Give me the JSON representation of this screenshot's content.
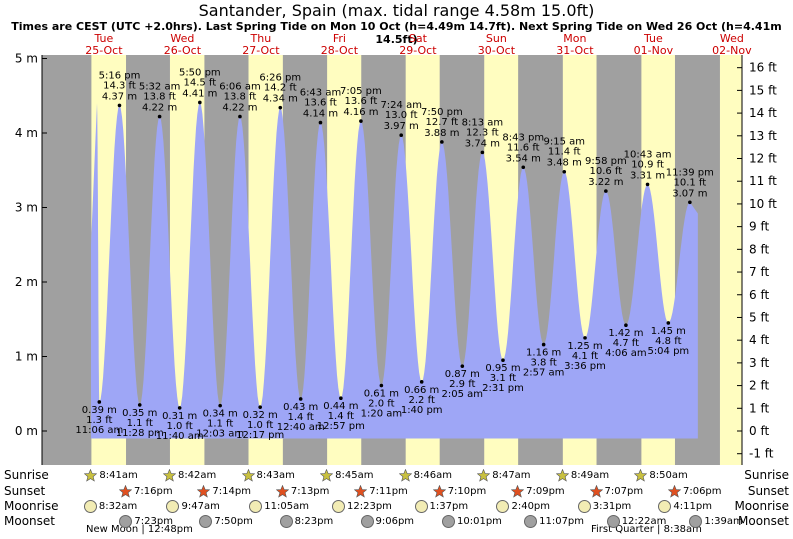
{
  "title": "Santander, Spain (max. tidal range 4.58m 15.0ft)",
  "subtitle": "Times are CEST (UTC +2.0hrs). Last Spring Tide on Mon 10 Oct (h=4.49m 14.7ft). Next Spring Tide on Wed 26 Oct (h=4.41m 14.5ft)",
  "colors": {
    "water": "#9ea6f6",
    "day": "#fffdc0",
    "night": "#a0a0a0",
    "day_label": "#cc0000",
    "sun_icon": "#c8c040",
    "sunset_icon": "#e05020"
  },
  "row_labels": {
    "sunrise": "Sunrise",
    "sunset": "Sunset",
    "moonrise": "Moonrise",
    "moonset": "Moonset"
  },
  "chart_data": {
    "type": "area",
    "title": "Santander, Spain (max. tidal range 4.58m 15.0ft)",
    "xlabel": "",
    "ylabel": "",
    "ylim_m": [
      -0.45,
      5.15
    ],
    "y_ticks_m": [
      "0 m",
      "1 m",
      "2 m",
      "3 m",
      "4 m",
      "5 m"
    ],
    "y_ticks_ft": [
      "-1 ft",
      "0 ft",
      "1 ft",
      "2 ft",
      "3 ft",
      "4 ft",
      "5 ft",
      "6 ft",
      "7 ft",
      "8 ft",
      "9 ft",
      "10 ft",
      "11 ft",
      "12 ft",
      "13 ft",
      "14 ft",
      "15 ft",
      "16 ft"
    ],
    "grid": false,
    "days": [
      {
        "weekday": "Tue",
        "date": "25-Oct"
      },
      {
        "weekday": "Wed",
        "date": "26-Oct"
      },
      {
        "weekday": "Thu",
        "date": "27-Oct"
      },
      {
        "weekday": "Fri",
        "date": "28-Oct"
      },
      {
        "weekday": "Sat",
        "date": "29-Oct"
      },
      {
        "weekday": "Sun",
        "date": "30-Oct"
      },
      {
        "weekday": "Mon",
        "date": "31-Oct"
      },
      {
        "weekday": "Tue",
        "date": "01-Nov"
      },
      {
        "weekday": "Wed",
        "date": "02-Nov"
      }
    ],
    "series": [
      {
        "day": 0,
        "time": "-",
        "height_m": 4.4,
        "labelled": false
      },
      {
        "day": 0,
        "time": "11:06 am",
        "height_m": 0.39,
        "ft": "1.3 ft",
        "m": "0.39 m",
        "type": "low"
      },
      {
        "day": 0,
        "time": "5:16 pm",
        "height_m": 4.37,
        "ft": "14.3 ft",
        "m": "4.37 m",
        "type": "high"
      },
      {
        "day": 0,
        "time": "11:28 pm",
        "height_m": 0.35,
        "ft": "1.1 ft",
        "m": "0.35 m",
        "type": "low"
      },
      {
        "day": 1,
        "time": "5:32 am",
        "height_m": 4.22,
        "ft": "13.8 ft",
        "m": "4.22 m",
        "type": "high"
      },
      {
        "day": 1,
        "time": "11:40 am",
        "height_m": 0.31,
        "ft": "1.0 ft",
        "m": "0.31 m",
        "type": "low"
      },
      {
        "day": 1,
        "time": "5:50 pm",
        "height_m": 4.41,
        "ft": "14.5 ft",
        "m": "4.41 m",
        "type": "high"
      },
      {
        "day": 2,
        "time": "12:03 am",
        "height_m": 0.34,
        "ft": "1.1 ft",
        "m": "0.34 m",
        "type": "low"
      },
      {
        "day": 2,
        "time": "6:06 am",
        "height_m": 4.22,
        "ft": "13.8 ft",
        "m": "4.22 m",
        "type": "high"
      },
      {
        "day": 2,
        "time": "12:17 pm",
        "height_m": 0.32,
        "ft": "1.0 ft",
        "m": "0.32 m",
        "type": "low"
      },
      {
        "day": 2,
        "time": "6:26 pm",
        "height_m": 4.34,
        "ft": "14.2 ft",
        "m": "4.34 m",
        "type": "high"
      },
      {
        "day": 3,
        "time": "12:40 am",
        "height_m": 0.43,
        "ft": "1.4 ft",
        "m": "0.43 m",
        "type": "low"
      },
      {
        "day": 3,
        "time": "6:43 am",
        "height_m": 4.14,
        "ft": "13.6 ft",
        "m": "4.14 m",
        "type": "high"
      },
      {
        "day": 3,
        "time": "12:57 pm",
        "height_m": 0.44,
        "ft": "1.4 ft",
        "m": "0.44 m",
        "type": "low"
      },
      {
        "day": 3,
        "time": "7:05 pm",
        "height_m": 4.16,
        "ft": "13.6 ft",
        "m": "4.16 m",
        "type": "high"
      },
      {
        "day": 4,
        "time": "1:20 am",
        "height_m": 0.61,
        "ft": "2.0 ft",
        "m": "0.61 m",
        "type": "low"
      },
      {
        "day": 4,
        "time": "7:24 am",
        "height_m": 3.97,
        "ft": "13.0 ft",
        "m": "3.97 m",
        "type": "high"
      },
      {
        "day": 4,
        "time": "1:40 pm",
        "height_m": 0.66,
        "ft": "2.2 ft",
        "m": "0.66 m",
        "type": "low"
      },
      {
        "day": 4,
        "time": "7:50 pm",
        "height_m": 3.88,
        "ft": "12.7 ft",
        "m": "3.88 m",
        "type": "high"
      },
      {
        "day": 5,
        "time": "2:05 am",
        "height_m": 0.87,
        "ft": "2.9 ft",
        "m": "0.87 m",
        "type": "low"
      },
      {
        "day": 5,
        "time": "8:13 am",
        "height_m": 3.74,
        "ft": "12.3 ft",
        "m": "3.74 m",
        "type": "high"
      },
      {
        "day": 5,
        "time": "2:31 pm",
        "height_m": 0.95,
        "ft": "3.1 ft",
        "m": "0.95 m",
        "type": "low"
      },
      {
        "day": 5,
        "time": "8:43 pm",
        "height_m": 3.54,
        "ft": "11.6 ft",
        "m": "3.54 m",
        "type": "high"
      },
      {
        "day": 6,
        "time": "2:57 am",
        "height_m": 1.16,
        "ft": "3.8 ft",
        "m": "1.16 m",
        "type": "low"
      },
      {
        "day": 6,
        "time": "9:15 am",
        "height_m": 3.48,
        "ft": "11.4 ft",
        "m": "3.48 m",
        "type": "high"
      },
      {
        "day": 6,
        "time": "3:36 pm",
        "height_m": 1.25,
        "ft": "4.1 ft",
        "m": "1.25 m",
        "type": "low"
      },
      {
        "day": 6,
        "time": "9:58 pm",
        "height_m": 3.22,
        "ft": "10.6 ft",
        "m": "3.22 m",
        "type": "high"
      },
      {
        "day": 7,
        "time": "4:06 am",
        "height_m": 1.42,
        "ft": "4.7 ft",
        "m": "1.42 m",
        "type": "low"
      },
      {
        "day": 7,
        "time": "10:43 am",
        "height_m": 3.31,
        "ft": "10.9 ft",
        "m": "3.31 m",
        "type": "high"
      },
      {
        "day": 7,
        "time": "5:04 pm",
        "height_m": 1.45,
        "ft": "4.8 ft",
        "m": "1.45 m",
        "type": "low"
      },
      {
        "day": 7,
        "time": "11:39 pm",
        "height_m": 3.07,
        "ft": "10.1 ft",
        "m": "3.07 m",
        "type": "high"
      }
    ]
  },
  "astro": [
    {
      "sunrise": "8:41am",
      "sunset": "7:16pm",
      "moonrise": "8:32am",
      "moonset": "7:23pm"
    },
    {
      "sunrise": "8:42am",
      "sunset": "7:14pm",
      "moonrise": "9:47am",
      "moonset": "7:50pm"
    },
    {
      "sunrise": "8:43am",
      "sunset": "7:13pm",
      "moonrise": "11:05am",
      "moonset": "8:23pm"
    },
    {
      "sunrise": "8:45am",
      "sunset": "7:11pm",
      "moonrise": "12:23pm",
      "moonset": "9:06pm"
    },
    {
      "sunrise": "8:46am",
      "sunset": "7:10pm",
      "moonrise": "1:37pm",
      "moonset": "10:01pm"
    },
    {
      "sunrise": "8:47am",
      "sunset": "7:09pm",
      "moonrise": "2:40pm",
      "moonset": "11:07pm"
    },
    {
      "sunrise": "8:49am",
      "sunset": "7:07pm",
      "moonrise": "3:31pm",
      "moonset": "12:22am"
    },
    {
      "sunrise": "8:50am",
      "sunset": "7:06pm",
      "moonrise": "4:11pm",
      "moonset": "1:39am"
    }
  ],
  "moon_phases": {
    "new_moon": "New Moon | 12:48pm",
    "first_quarter": "First Quarter | 8:38am"
  }
}
